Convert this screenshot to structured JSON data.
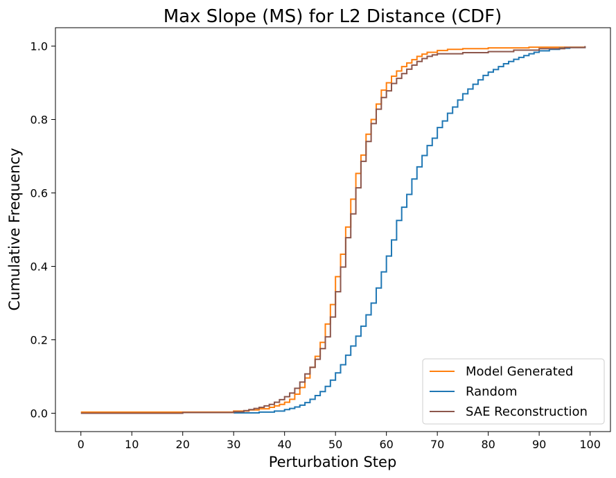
{
  "chart_data": {
    "type": "line",
    "step": true,
    "title": "Max Slope (MS) for L2 Distance (CDF)",
    "xlabel": "Perturbation Step",
    "ylabel": "Cumulative Frequency",
    "xlim": [
      -5,
      104
    ],
    "ylim": [
      -0.05,
      1.05
    ],
    "xticks": [
      0,
      10,
      20,
      30,
      40,
      50,
      60,
      70,
      80,
      90,
      100
    ],
    "yticks": [
      0.0,
      0.2,
      0.4,
      0.6,
      0.8,
      1.0
    ],
    "ytick_labels": [
      "0.0",
      "0.2",
      "0.4",
      "0.6",
      "0.8",
      "1.0"
    ],
    "legend_position": "lower-right",
    "series": [
      {
        "name": "Model Generated",
        "color": "#ff7f0e",
        "points": [
          [
            0,
            0.003
          ],
          [
            30,
            0.006
          ],
          [
            33,
            0.009
          ],
          [
            35,
            0.012
          ],
          [
            37,
            0.016
          ],
          [
            38,
            0.02
          ],
          [
            39,
            0.024
          ],
          [
            40,
            0.03
          ],
          [
            41,
            0.038
          ],
          [
            42,
            0.052
          ],
          [
            43,
            0.07
          ],
          [
            44,
            0.096
          ],
          [
            45,
            0.125
          ],
          [
            46,
            0.155
          ],
          [
            47,
            0.193
          ],
          [
            48,
            0.243
          ],
          [
            49,
            0.296
          ],
          [
            50,
            0.372
          ],
          [
            51,
            0.433
          ],
          [
            52,
            0.507
          ],
          [
            53,
            0.583
          ],
          [
            54,
            0.653
          ],
          [
            55,
            0.703
          ],
          [
            56,
            0.76
          ],
          [
            57,
            0.8
          ],
          [
            58,
            0.842
          ],
          [
            59,
            0.88
          ],
          [
            60,
            0.9
          ],
          [
            61,
            0.918
          ],
          [
            62,
            0.932
          ],
          [
            63,
            0.944
          ],
          [
            64,
            0.954
          ],
          [
            65,
            0.963
          ],
          [
            66,
            0.972
          ],
          [
            67,
            0.978
          ],
          [
            68,
            0.983
          ],
          [
            70,
            0.988
          ],
          [
            72,
            0.991
          ],
          [
            75,
            0.993
          ],
          [
            80,
            0.995
          ],
          [
            88,
            0.997
          ],
          [
            99,
            0.999
          ]
        ]
      },
      {
        "name": "Random",
        "color": "#1f77b4",
        "points": [
          [
            30,
            0.001
          ],
          [
            35,
            0.003
          ],
          [
            38,
            0.006
          ],
          [
            40,
            0.01
          ],
          [
            41,
            0.013
          ],
          [
            42,
            0.017
          ],
          [
            43,
            0.022
          ],
          [
            44,
            0.029
          ],
          [
            45,
            0.038
          ],
          [
            46,
            0.048
          ],
          [
            47,
            0.059
          ],
          [
            48,
            0.073
          ],
          [
            49,
            0.09
          ],
          [
            50,
            0.11
          ],
          [
            51,
            0.132
          ],
          [
            52,
            0.158
          ],
          [
            53,
            0.183
          ],
          [
            54,
            0.21
          ],
          [
            55,
            0.237
          ],
          [
            56,
            0.268
          ],
          [
            57,
            0.3
          ],
          [
            58,
            0.341
          ],
          [
            59,
            0.385
          ],
          [
            60,
            0.428
          ],
          [
            61,
            0.472
          ],
          [
            62,
            0.525
          ],
          [
            63,
            0.561
          ],
          [
            64,
            0.596
          ],
          [
            65,
            0.638
          ],
          [
            66,
            0.671
          ],
          [
            67,
            0.702
          ],
          [
            68,
            0.729
          ],
          [
            69,
            0.749
          ],
          [
            70,
            0.778
          ],
          [
            71,
            0.796
          ],
          [
            72,
            0.817
          ],
          [
            73,
            0.834
          ],
          [
            74,
            0.853
          ],
          [
            75,
            0.87
          ],
          [
            76,
            0.883
          ],
          [
            77,
            0.896
          ],
          [
            78,
            0.908
          ],
          [
            79,
            0.92
          ],
          [
            80,
            0.929
          ],
          [
            81,
            0.936
          ],
          [
            82,
            0.944
          ],
          [
            83,
            0.952
          ],
          [
            84,
            0.958
          ],
          [
            85,
            0.964
          ],
          [
            86,
            0.969
          ],
          [
            87,
            0.974
          ],
          [
            88,
            0.979
          ],
          [
            89,
            0.983
          ],
          [
            90,
            0.987
          ],
          [
            92,
            0.991
          ],
          [
            94,
            0.994
          ],
          [
            96,
            0.996
          ],
          [
            99,
            0.999
          ]
        ]
      },
      {
        "name": "SAE Reconstruction",
        "color": "#8c564b",
        "points": [
          [
            0,
            0.0
          ],
          [
            20,
            0.002
          ],
          [
            30,
            0.004
          ],
          [
            32,
            0.007
          ],
          [
            33,
            0.01
          ],
          [
            34,
            0.013
          ],
          [
            35,
            0.016
          ],
          [
            36,
            0.02
          ],
          [
            37,
            0.024
          ],
          [
            38,
            0.03
          ],
          [
            39,
            0.037
          ],
          [
            40,
            0.045
          ],
          [
            41,
            0.055
          ],
          [
            42,
            0.068
          ],
          [
            43,
            0.085
          ],
          [
            44,
            0.107
          ],
          [
            45,
            0.125
          ],
          [
            46,
            0.147
          ],
          [
            47,
            0.176
          ],
          [
            48,
            0.208
          ],
          [
            49,
            0.262
          ],
          [
            50,
            0.331
          ],
          [
            51,
            0.398
          ],
          [
            52,
            0.478
          ],
          [
            53,
            0.543
          ],
          [
            54,
            0.614
          ],
          [
            55,
            0.686
          ],
          [
            56,
            0.74
          ],
          [
            57,
            0.789
          ],
          [
            58,
            0.828
          ],
          [
            59,
            0.86
          ],
          [
            60,
            0.878
          ],
          [
            61,
            0.898
          ],
          [
            62,
            0.912
          ],
          [
            63,
            0.925
          ],
          [
            64,
            0.937
          ],
          [
            65,
            0.948
          ],
          [
            66,
            0.958
          ],
          [
            67,
            0.966
          ],
          [
            68,
            0.972
          ],
          [
            69,
            0.976
          ],
          [
            70,
            0.979
          ],
          [
            75,
            0.982
          ],
          [
            80,
            0.985
          ],
          [
            85,
            0.989
          ],
          [
            90,
            0.993
          ],
          [
            95,
            0.996
          ],
          [
            99,
            1.0
          ]
        ]
      }
    ]
  }
}
